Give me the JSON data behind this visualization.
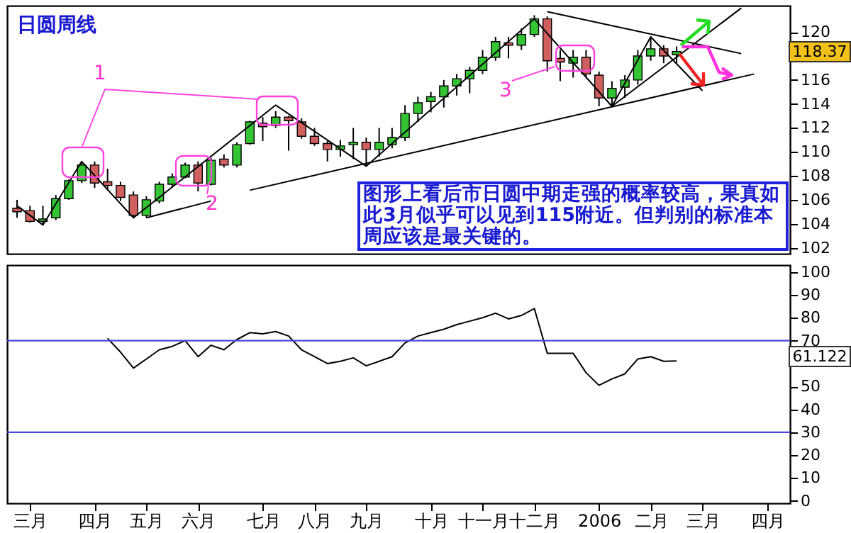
{
  "chart_data": [
    {
      "type": "candlestick",
      "title": "日圆周线",
      "categories": [
        null,
        null,
        null,
        null,
        null,
        null,
        null,
        null,
        null,
        null,
        null,
        null,
        null,
        null,
        null,
        null,
        null,
        null,
        null,
        null,
        null,
        null,
        null,
        null,
        null,
        null,
        null,
        null,
        null,
        null,
        null,
        null,
        null,
        null,
        null,
        null,
        null,
        null,
        null,
        null,
        null,
        null,
        null,
        null,
        null,
        null,
        null,
        null,
        null,
        null,
        null,
        null,
        null,
        null,
        null,
        null,
        null,
        null,
        null,
        null
      ],
      "ohlc": [
        [
          105.3,
          106,
          104.5,
          105.0
        ],
        [
          105.1,
          105.5,
          104.1,
          104.2
        ],
        [
          104.2,
          105.5,
          103.9,
          104.4
        ],
        [
          104.5,
          106.4,
          104.3,
          106.1
        ],
        [
          106.1,
          107.7,
          106.0,
          107.6
        ],
        [
          107.6,
          109.2,
          107.4,
          108.9
        ],
        [
          108.9,
          109.2,
          107.0,
          107.4
        ],
        [
          107.5,
          108.6,
          106.8,
          107.2
        ],
        [
          107.2,
          107.5,
          105.9,
          106.2
        ],
        [
          106.4,
          106.7,
          104.5,
          104.7
        ],
        [
          104.7,
          106.3,
          104.5,
          106.0
        ],
        [
          105.9,
          107.5,
          105.7,
          107.3
        ],
        [
          107.3,
          108.2,
          107.0,
          107.9
        ],
        [
          107.9,
          109.1,
          107.8,
          108.9
        ],
        [
          108.9,
          109.2,
          106.7,
          107.4
        ],
        [
          107.3,
          109.5,
          107.2,
          109.3
        ],
        [
          109.4,
          109.8,
          108.7,
          108.9
        ],
        [
          108.9,
          110.8,
          108.7,
          110.6
        ],
        [
          110.7,
          112.6,
          110.6,
          112.5
        ],
        [
          112.4,
          112.9,
          110.9,
          112.1
        ],
        [
          112.2,
          113.4,
          112.0,
          112.9
        ],
        [
          112.9,
          113.0,
          110.1,
          112.6
        ],
        [
          112.5,
          112.8,
          111.1,
          111.3
        ],
        [
          111.3,
          112.0,
          110.5,
          110.7
        ],
        [
          110.7,
          110.9,
          109.2,
          110.2
        ],
        [
          110.2,
          111.0,
          109.6,
          110.5
        ],
        [
          110.6,
          112.0,
          109.4,
          110.8
        ],
        [
          110.8,
          111.2,
          108.8,
          110.2
        ],
        [
          110.2,
          112.0,
          109.6,
          110.8
        ],
        [
          110.6,
          112.0,
          110.3,
          111.2
        ],
        [
          111.2,
          113.9,
          110.9,
          113.2
        ],
        [
          113.2,
          114.6,
          112.5,
          114.1
        ],
        [
          114.2,
          115.0,
          113.3,
          114.6
        ],
        [
          114.6,
          116.0,
          113.7,
          115.5
        ],
        [
          115.5,
          116.5,
          114.7,
          116.1
        ],
        [
          116.1,
          117.1,
          114.9,
          116.8
        ],
        [
          116.8,
          118.5,
          116.5,
          117.9
        ],
        [
          117.9,
          119.6,
          117.6,
          119.2
        ],
        [
          119.1,
          119.6,
          117.8,
          118.9
        ],
        [
          118.9,
          120.3,
          118.5,
          119.8
        ],
        [
          119.8,
          121.4,
          119.6,
          121.1
        ],
        [
          121.1,
          121.3,
          116.7,
          117.6
        ],
        [
          117.8,
          118.5,
          115.9,
          117.5
        ],
        [
          117.4,
          118.5,
          116.2,
          117.9
        ],
        [
          117.9,
          118.5,
          116.2,
          116.5
        ],
        [
          116.4,
          116.7,
          113.8,
          114.5
        ],
        [
          114.5,
          115.9,
          113.8,
          115.3
        ],
        [
          115.4,
          116.4,
          114.5,
          116.0
        ],
        [
          116.0,
          118.5,
          115.6,
          118.0
        ],
        [
          118.0,
          119.6,
          117.6,
          118.6
        ],
        [
          118.6,
          118.9,
          117.4,
          118.0
        ],
        [
          118.1,
          118.8,
          117.4,
          118.37
        ],
        null,
        null,
        null,
        null,
        null,
        null,
        null,
        null
      ],
      "ylim": [
        101.5,
        122.2
      ],
      "yticks": [
        102,
        104,
        106,
        108,
        110,
        112,
        114,
        116,
        120
      ],
      "tick_labels": "y",
      "series": [
        {
          "type": "line",
          "color": "#000000",
          "values": [
            105.5,
            null,
            103.9,
            null,
            null,
            109.2,
            null,
            null,
            null,
            104.5,
            null,
            null,
            null,
            null,
            null,
            null,
            null,
            null,
            null,
            null,
            113.9,
            null,
            null,
            null,
            null,
            null,
            null,
            108.8,
            null,
            null,
            null,
            null,
            null,
            null,
            null,
            null,
            null,
            null,
            null,
            null,
            121.1,
            null,
            null,
            null,
            null,
            null,
            113.8,
            null,
            null,
            119.6,
            null,
            null,
            null,
            115.1,
            null,
            null,
            null,
            null,
            null,
            null
          ]
        },
        {
          "type": "line",
          "color": "#000000",
          "values": [
            null,
            null,
            null,
            null,
            null,
            null,
            null,
            null,
            null,
            null,
            null,
            null,
            null,
            null,
            null,
            null,
            null,
            null,
            106.8,
            null,
            null,
            null,
            null,
            null,
            null,
            null,
            null,
            null,
            null,
            null,
            null,
            null,
            null,
            null,
            null,
            null,
            null,
            null,
            null,
            null,
            null,
            null,
            null,
            null,
            null,
            null,
            null,
            null,
            null,
            null,
            null,
            null,
            null,
            null,
            null,
            null,
            null,
            116.5,
            null,
            null
          ]
        },
        {
          "type": "line",
          "color": "#000000",
          "values": [
            null,
            null,
            null,
            null,
            null,
            null,
            null,
            null,
            null,
            null,
            null,
            null,
            null,
            null,
            null,
            null,
            null,
            null,
            null,
            null,
            null,
            null,
            null,
            null,
            null,
            null,
            null,
            null,
            null,
            null,
            null,
            null,
            null,
            null,
            null,
            null,
            null,
            null,
            null,
            null,
            null,
            121.7,
            null,
            null,
            null,
            null,
            null,
            null,
            null,
            null,
            null,
            null,
            null,
            null,
            null,
            null,
            118.2,
            null,
            null,
            null
          ]
        },
        {
          "type": "line",
          "color": "#000000",
          "values": [
            null,
            null,
            null,
            null,
            null,
            null,
            null,
            null,
            null,
            null,
            null,
            null,
            null,
            null,
            null,
            null,
            null,
            null,
            null,
            null,
            null,
            null,
            null,
            null,
            null,
            null,
            null,
            null,
            null,
            null,
            null,
            null,
            null,
            null,
            null,
            null,
            null,
            null,
            null,
            null,
            null,
            null,
            null,
            null,
            null,
            null,
            113.8,
            null,
            null,
            null,
            null,
            null,
            null,
            null,
            null,
            null,
            122.0,
            null,
            null,
            null
          ]
        },
        {
          "type": "line",
          "color": "#000000",
          "values": [
            null,
            null,
            null,
            null,
            null,
            null,
            null,
            null,
            null,
            null,
            104.5,
            null,
            null,
            null,
            null,
            105.9,
            null,
            null,
            null,
            null,
            null,
            null,
            null,
            null,
            null,
            null,
            null,
            null,
            null,
            null,
            null,
            null,
            null,
            null,
            null,
            null,
            null,
            null,
            null,
            null,
            null,
            null,
            null,
            null,
            null,
            null,
            null,
            null,
            null,
            null,
            null,
            null,
            null,
            null,
            null,
            null,
            null,
            null,
            null,
            null
          ]
        }
      ],
      "annotations": [
        "1",
        "2",
        "3",
        "图形上看后市日圆中期走强的概率较高，果真如此3月似乎可以见到115附近。但判别的标准本周应该是最关键的。",
        "118.37"
      ]
    },
    {
      "type": "line",
      "categories": [
        null,
        "三月",
        null,
        null,
        null,
        null,
        "四月",
        null,
        null,
        null,
        "五月",
        null,
        null,
        null,
        "六月",
        null,
        null,
        null,
        null,
        "七月",
        null,
        null,
        null,
        "八月",
        null,
        null,
        null,
        "九月",
        null,
        null,
        null,
        null,
        "十月",
        null,
        null,
        null,
        "十一月",
        null,
        null,
        null,
        "十二月",
        null,
        null,
        null,
        null,
        "2006",
        null,
        null,
        null,
        "二月",
        null,
        null,
        null,
        "三月",
        null,
        null,
        null,
        null,
        "四月",
        null
      ],
      "series": [
        {
          "color": "#000000",
          "values": [
            null,
            null,
            null,
            null,
            null,
            null,
            null,
            71,
            65,
            58,
            62,
            66,
            67.5,
            70,
            63,
            68,
            66,
            70.5,
            73.5,
            73,
            74,
            72,
            66,
            63,
            60,
            61,
            62.5,
            59,
            61,
            63,
            69,
            72,
            73.5,
            75,
            77,
            78.5,
            80,
            82,
            79.5,
            81,
            84,
            64.5,
            64.5,
            64.5,
            56,
            50.5,
            53.3,
            55.5,
            62,
            63,
            61,
            61.122,
            null,
            null,
            null,
            null,
            null,
            null,
            null,
            null
          ]
        }
      ],
      "ylim": [
        -1,
        103
      ],
      "yticks": [
        0,
        10,
        20,
        30,
        40,
        50,
        70,
        80,
        90,
        100
      ],
      "ref_lines": [
        {
          "axis": "y",
          "value": 70,
          "color": "#4848e0"
        },
        {
          "axis": "y",
          "value": 30,
          "color": "#4848e0"
        }
      ],
      "annotations": [
        "61.122"
      ]
    }
  ]
}
